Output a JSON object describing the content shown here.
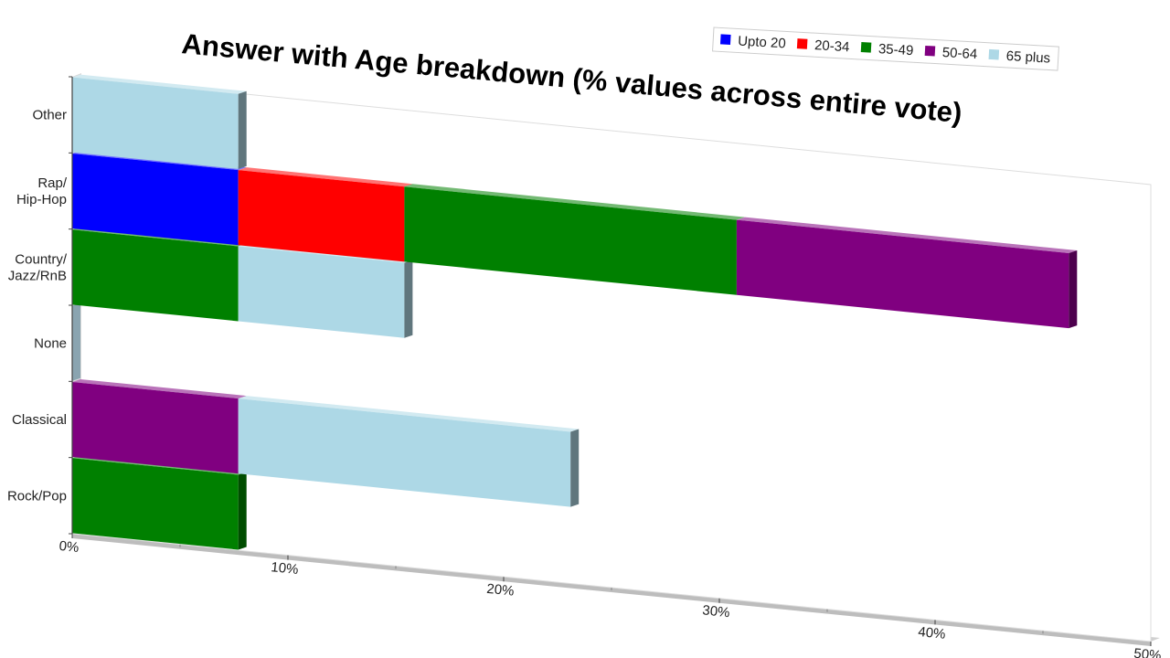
{
  "chart_data": {
    "type": "bar",
    "orientation": "horizontal",
    "stacked": true,
    "title": "Answer with Age breakdown (% values across entire vote)",
    "xlabel": "",
    "ylabel": "",
    "xlim": [
      0,
      50
    ],
    "x_tick_labels": [
      "0%",
      "10%",
      "20%",
      "30%",
      "40%",
      "50%"
    ],
    "x_tick_values": [
      0,
      10,
      20,
      30,
      40,
      50
    ],
    "categories": [
      "Rock/Pop",
      "Classical",
      "None",
      "Country/\nJazz/RnB",
      "Rap/\nHip-Hop",
      "Other"
    ],
    "series": [
      {
        "name": "Upto 20",
        "color": "#0000ff",
        "values": [
          0,
          0,
          0,
          0,
          7.7,
          0
        ]
      },
      {
        "name": "20-34",
        "color": "#ff0000",
        "values": [
          0,
          0,
          0,
          0,
          7.7,
          0
        ]
      },
      {
        "name": "35-49",
        "color": "#008000",
        "values": [
          7.7,
          0,
          0,
          7.7,
          15.4,
          0
        ]
      },
      {
        "name": "50-64",
        "color": "#800080",
        "values": [
          0,
          7.7,
          0,
          0,
          15.4,
          0
        ]
      },
      {
        "name": "65 plus",
        "color": "#add8e6",
        "values": [
          0,
          15.4,
          0,
          7.7,
          0,
          7.7
        ]
      }
    ],
    "legend_position": "top-right",
    "grid": false
  }
}
